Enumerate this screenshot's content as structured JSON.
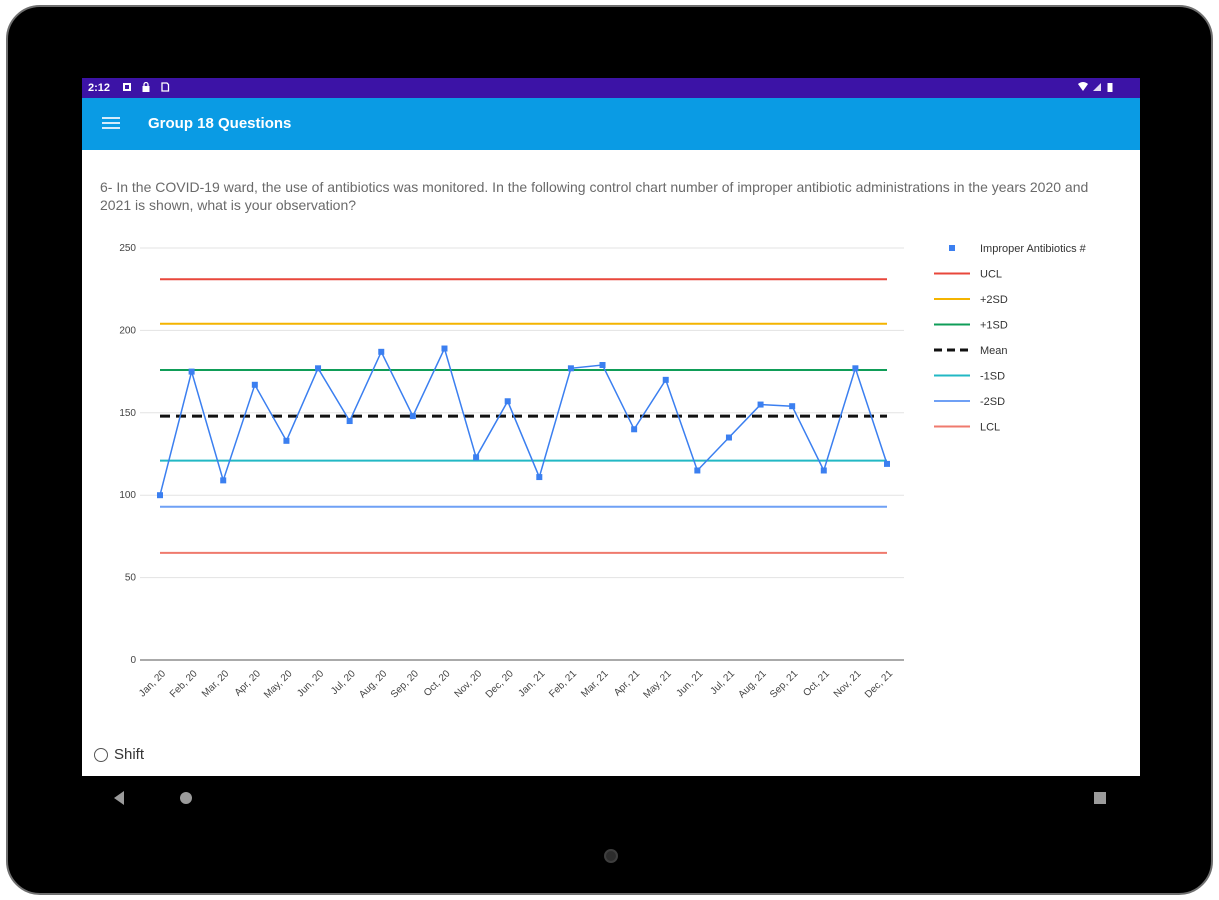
{
  "status_bar": {
    "time": "2:12"
  },
  "app_bar": {
    "title": "Group 18 Questions"
  },
  "question": {
    "text": "6- In the COVID-19 ward, the use of antibiotics was monitored. In the following control chart number of improper antibiotic administrations in the years 2020 and 2021 is shown, what is your observation?"
  },
  "options": [
    {
      "label": "Shift"
    }
  ],
  "chart_data": {
    "type": "line",
    "categories": [
      "Jan, 20",
      "Feb, 20",
      "Mar, 20",
      "Apr, 20",
      "May, 20",
      "Jun, 20",
      "Jul, 20",
      "Aug, 20",
      "Sep, 20",
      "Oct, 20",
      "Nov, 20",
      "Dec, 20",
      "Jan, 21",
      "Feb, 21",
      "Mar, 21",
      "Apr, 21",
      "May, 21",
      "Jun, 21",
      "Jul, 21",
      "Aug, 21",
      "Sep, 21",
      "Oct, 21",
      "Nov, 21",
      "Dec, 21"
    ],
    "ylim": [
      0,
      250
    ],
    "yticks": [
      0,
      50,
      100,
      150,
      200,
      250
    ],
    "grid": true,
    "legend_position": "right",
    "series": [
      {
        "name": "Improper Antibiotics #",
        "kind": "points-line",
        "color": "#3b7ff0",
        "values": [
          100,
          175,
          109,
          167,
          133,
          177,
          145,
          187,
          148,
          189,
          123,
          157,
          111,
          177,
          179,
          140,
          170,
          115,
          135,
          155,
          154,
          115,
          177,
          119
        ]
      },
      {
        "name": "UCL",
        "kind": "constant",
        "value": 231,
        "color": "#e8473b"
      },
      {
        "name": "+2SD",
        "kind": "constant",
        "value": 204,
        "color": "#f4b400"
      },
      {
        "name": "+1SD",
        "kind": "constant",
        "value": 176,
        "color": "#0f9d58"
      },
      {
        "name": "Mean",
        "kind": "constant-dashed",
        "value": 148,
        "color": "#111111"
      },
      {
        "name": "-1SD",
        "kind": "constant",
        "value": 121,
        "color": "#22b8c4"
      },
      {
        "name": "-2SD",
        "kind": "constant",
        "value": 93,
        "color": "#6fa0f5"
      },
      {
        "name": "LCL",
        "kind": "constant",
        "value": 65,
        "color": "#ef7a6d"
      }
    ]
  }
}
